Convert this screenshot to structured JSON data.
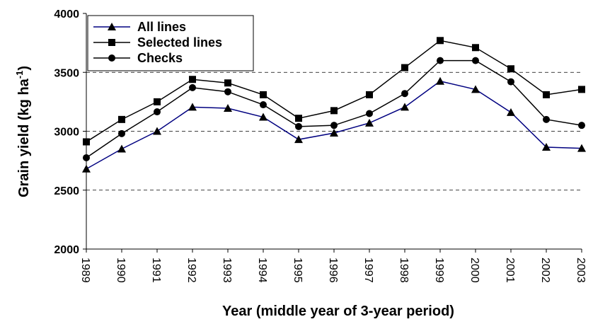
{
  "chart_data": {
    "type": "line",
    "y_label": {
      "main": "Grain yield (kg ha",
      "sup": "-1",
      "end": ")"
    },
    "x_label": "Year (middle year of 3-year period)",
    "categories": [
      "1989",
      "1990",
      "1991",
      "1992",
      "1993",
      "1994",
      "1995",
      "1996",
      "1997",
      "1998",
      "1999",
      "2000",
      "2001",
      "2002",
      "2003"
    ],
    "series": [
      {
        "name": "All lines",
        "color": "#000080",
        "marker": "triangle",
        "values": [
          2680,
          2850,
          3000,
          3205,
          3195,
          3120,
          2930,
          2985,
          3070,
          3205,
          3425,
          3355,
          3160,
          2865,
          2855
        ]
      },
      {
        "name": "Selected lines",
        "color": "#000000",
        "marker": "square",
        "values": [
          2910,
          3100,
          3250,
          3440,
          3410,
          3310,
          3110,
          3175,
          3310,
          3540,
          3770,
          3710,
          3530,
          3310,
          3355
        ]
      },
      {
        "name": "Checks",
        "color": "#000000",
        "marker": "circle",
        "values": [
          2775,
          2980,
          3165,
          3370,
          3335,
          3225,
          3040,
          3050,
          3150,
          3320,
          3600,
          3600,
          3420,
          3100,
          3050
        ]
      }
    ],
    "ylim": [
      2000,
      4000
    ],
    "yticks": [
      2000,
      2500,
      3000,
      3500,
      4000
    ],
    "grid": true,
    "legend": "top-left"
  }
}
